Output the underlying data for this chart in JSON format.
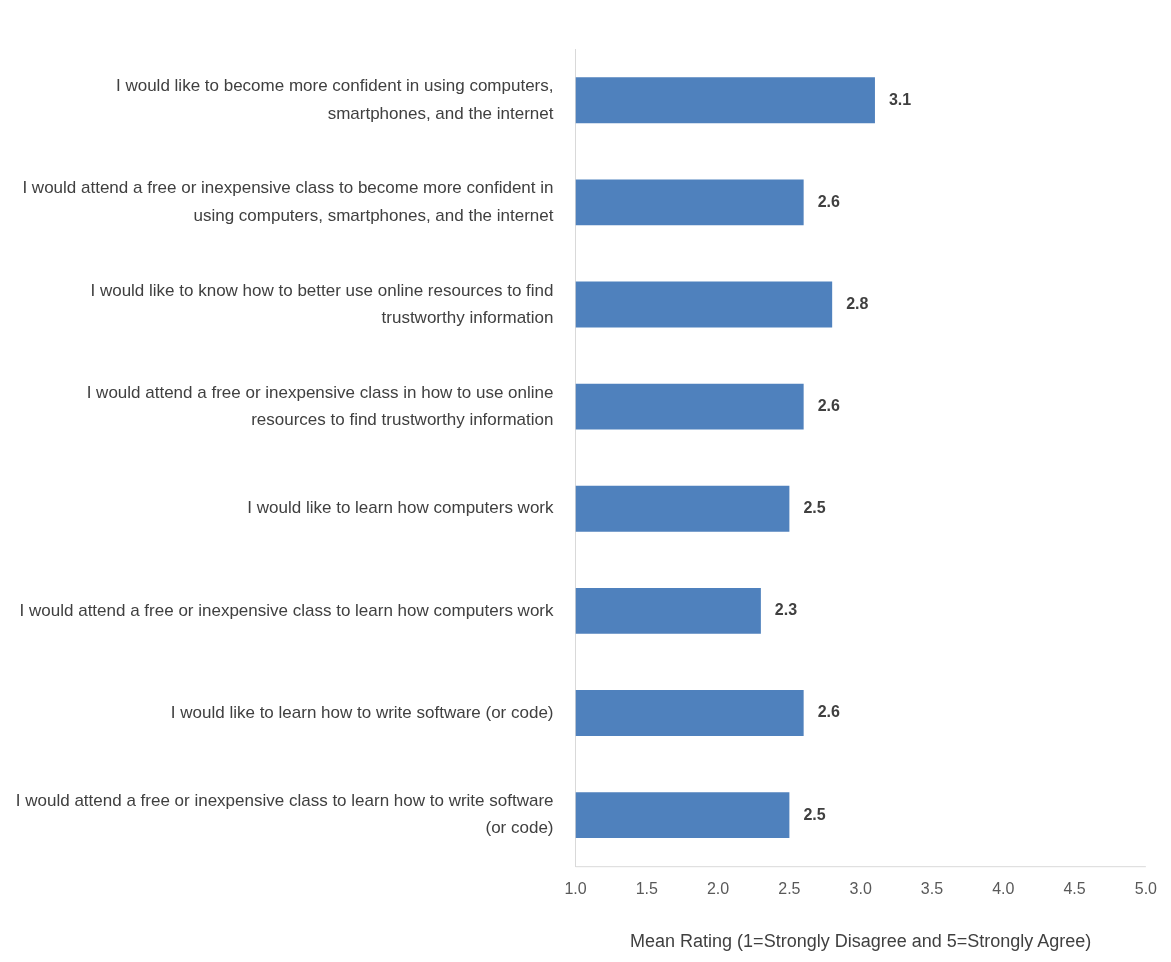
{
  "chart_data": {
    "type": "bar",
    "orientation": "horizontal",
    "xlabel": "Mean Rating (1=Strongly Disagree and 5=Strongly Agree)",
    "categories": [
      "I would like to become more confident in using computers, smartphones, and the internet",
      "I would attend a free or inexpensive class to become more confident in using computers, smartphones, and the internet",
      "I would like to know how to better use online resources to find trustworthy information",
      "I would attend a free or inexpensive class in how to use online resources to find trustworthy information",
      "I would like to learn how computers work",
      "I would attend a free or inexpensive class to learn how computers work",
      "I would like to learn how to write software (or code)",
      "I would attend a free or inexpensive class to learn how to write software (or code)"
    ],
    "values": [
      3.1,
      2.6,
      2.8,
      2.6,
      2.5,
      2.3,
      2.6,
      2.5
    ],
    "color": "#4f81bd",
    "xlim": [
      1,
      5
    ],
    "xticks": [
      {
        "value": 1,
        "label": "1.0"
      },
      {
        "value": 1.5,
        "label": "1.5"
      },
      {
        "value": 2,
        "label": "2.0"
      },
      {
        "value": 2.5,
        "label": "2.5"
      },
      {
        "value": 3,
        "label": "3.0"
      },
      {
        "value": 3.5,
        "label": "3.5"
      },
      {
        "value": 4,
        "label": "4.0"
      },
      {
        "value": 4.5,
        "label": "4.5"
      },
      {
        "value": 5,
        "label": "5.0"
      }
    ],
    "data_labels": true,
    "grid": false,
    "legend": false
  }
}
